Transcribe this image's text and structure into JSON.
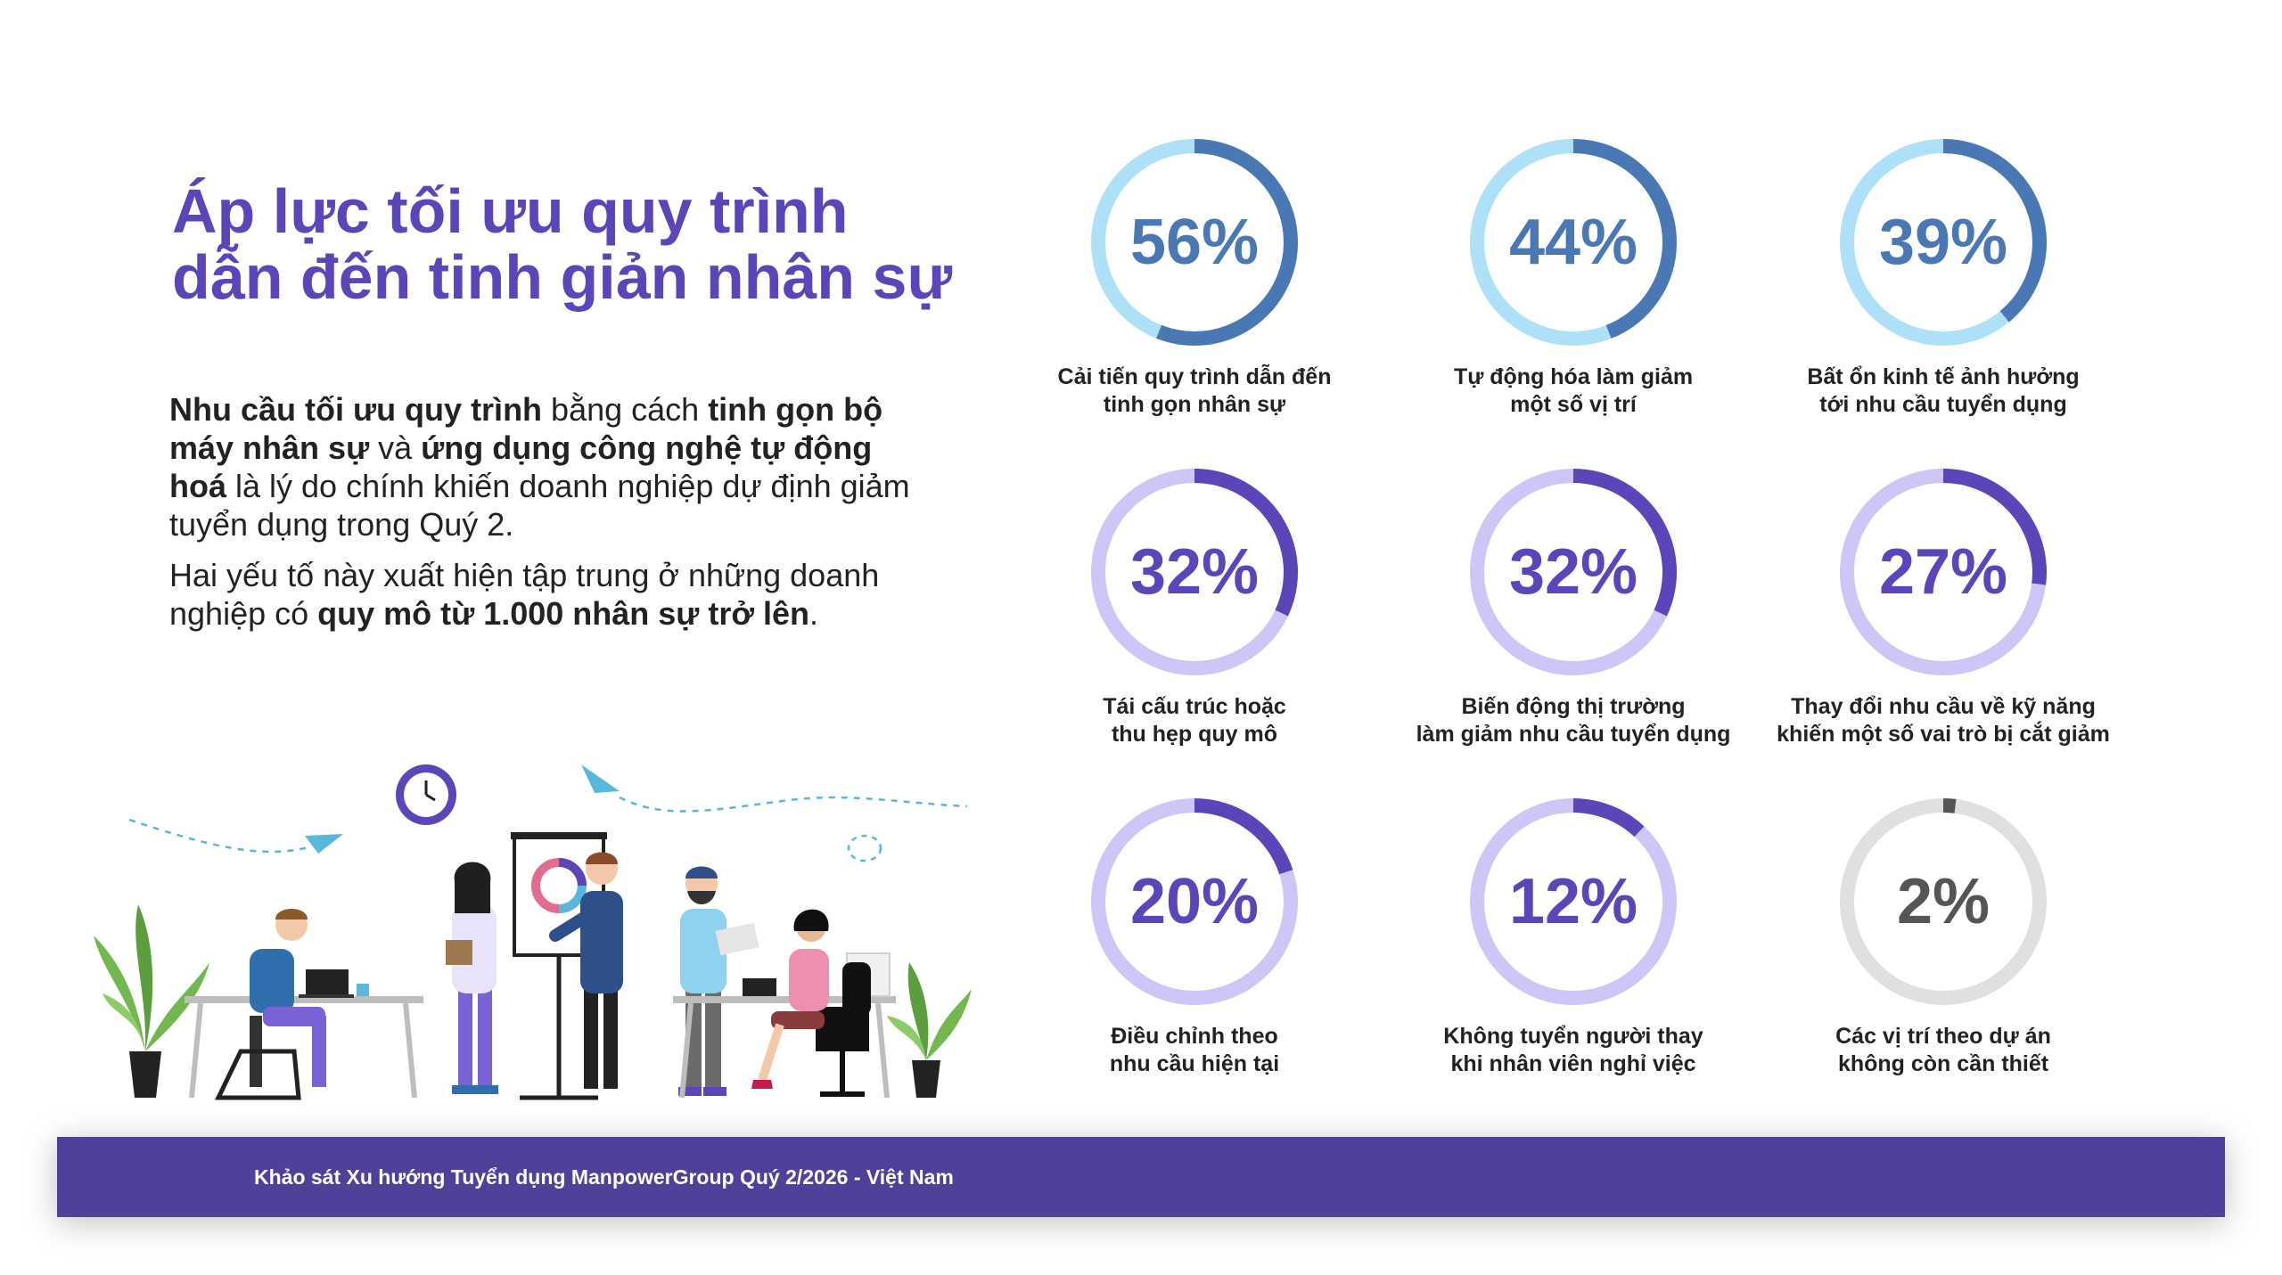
{
  "title_lines": [
    "Áp lực tối ưu quy trình",
    "dẫn đến tinh giản nhân sự"
  ],
  "intro": {
    "p1": [
      {
        "text": "Nhu cầu tối ưu quy trình",
        "bold": true
      },
      {
        "text": " bằng cách ",
        "bold": false
      },
      {
        "text": "tinh gọn bộ máy nhân sự",
        "bold": true
      },
      {
        "text": " và ",
        "bold": false
      },
      {
        "text": "ứng dụng công nghệ tự động hoá",
        "bold": true
      },
      {
        "text": " là lý do chính khiến doanh nghiệp dự định giảm tuyển dụng trong Quý 2.",
        "bold": false
      }
    ],
    "p2": [
      {
        "text": "Hai yếu tố này xuất hiện tập trung ở những doanh nghiệp có ",
        "bold": false
      },
      {
        "text": "quy mô từ 1.000 nhân sự trở lên",
        "bold": true
      },
      {
        "text": ".",
        "bold": false
      }
    ]
  },
  "colors": {
    "title": "#5b45b8",
    "blue_arc": "#4a78b5",
    "blue_track": "#aee0f7",
    "blue_text": "#4a78b5",
    "purple_arc": "#5b45b8",
    "purple_track": "#cdc6f7",
    "purple_text": "#5b45b8",
    "gray_arc": "#555555",
    "gray_track": "#e0e0e0",
    "gray_text": "#555555",
    "footer_bg": "#51409a"
  },
  "chart_data": {
    "type": "donut-grid",
    "unit": "%",
    "items": [
      {
        "value": 56,
        "display": "56%",
        "label_lines": [
          "Cải tiến quy trình dẫn đến",
          "tinh gọn nhân sự"
        ],
        "theme": "blue"
      },
      {
        "value": 44,
        "display": "44%",
        "label_lines": [
          "Tự động hóa làm giảm",
          "một số vị trí"
        ],
        "theme": "blue"
      },
      {
        "value": 39,
        "display": "39%",
        "label_lines": [
          "Bất ổn kinh tế ảnh hưởng",
          "tới nhu cầu tuyển dụng"
        ],
        "theme": "blue"
      },
      {
        "value": 32,
        "display": "32%",
        "label_lines": [
          "Tái cấu trúc hoặc",
          "thu hẹp quy mô"
        ],
        "theme": "purple"
      },
      {
        "value": 32,
        "display": "32%",
        "label_lines": [
          "Biến động thị trường",
          "làm giảm nhu cầu tuyển dụng"
        ],
        "theme": "purple"
      },
      {
        "value": 27,
        "display": "27%",
        "label_lines": [
          "Thay đổi nhu cầu về kỹ năng",
          "khiến một số vai trò bị cắt giảm"
        ],
        "theme": "purple"
      },
      {
        "value": 20,
        "display": "20%",
        "label_lines": [
          "Điều chỉnh theo",
          "nhu cầu hiện tại"
        ],
        "theme": "purple"
      },
      {
        "value": 12,
        "display": "12%",
        "label_lines": [
          "Không tuyển người thay",
          "khi nhân viên nghỉ việc"
        ],
        "theme": "purple"
      },
      {
        "value": 2,
        "display": "2%",
        "label_lines": [
          "Các vị trí theo dự án",
          "không còn cần thiết"
        ],
        "theme": "gray"
      }
    ]
  },
  "footer": {
    "text": "Khảo sát Xu hướng Tuyển dụng ManpowerGroup Quý 2/2026 - Việt Nam"
  }
}
